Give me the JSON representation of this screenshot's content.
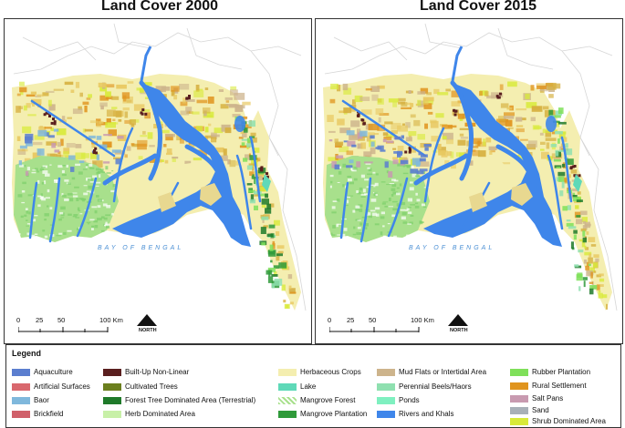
{
  "panels": [
    {
      "title": "Land Cover 2000",
      "bay_label": "BAY OF BENGAL",
      "scale_ticks": [
        "0",
        "25",
        "50",
        "100 Km"
      ],
      "north_label": "NORTH"
    },
    {
      "title": "Land Cover 2015",
      "bay_label": "BAY OF BENGAL",
      "scale_ticks": [
        "0",
        "25",
        "50",
        "100 Km"
      ],
      "north_label": "NORTH"
    }
  ],
  "legend": {
    "title": "Legend",
    "columns": [
      [
        {
          "label": "Aquaculture",
          "color": "#5b7ecf"
        },
        {
          "label": "Artificial Surfaces",
          "color": "#d9686e"
        },
        {
          "label": "Baor",
          "color": "#7fb8dc"
        },
        {
          "label": "Brickfield",
          "color": "#d0606a"
        }
      ],
      [
        {
          "label": "Built-Up Non-Linear",
          "color": "#5a1f1f"
        },
        {
          "label": "Cultivated Trees",
          "color": "#6b7f1e"
        },
        {
          "label": "Forest Tree Dominated Area (Terrestrial)",
          "color": "#1f7a2a"
        },
        {
          "label": "Herb Dominated Area",
          "color": "#c8f0a8"
        }
      ],
      [
        {
          "label": "Herbaceous Crops",
          "color": "#f4eeb0"
        },
        {
          "label": "Lake",
          "color": "#5fd9b8"
        },
        {
          "label": "Mangrove Forest",
          "color": "#a8e08c"
        },
        {
          "label": "Mangrove Plantation",
          "color": "#2f9a3a"
        }
      ],
      [
        {
          "label": "Mud Flats or Intertidal Area",
          "color": "#cdb48c"
        },
        {
          "label": "Perennial Beels/Haors",
          "color": "#8fe0b0"
        },
        {
          "label": "Ponds",
          "color": "#7ff0c0"
        },
        {
          "label": "Rivers and Khals",
          "color": "#3f86ea"
        }
      ],
      [
        {
          "label": "Rubber Plantation",
          "color": "#7fe05a"
        },
        {
          "label": "Rural Settlement",
          "color": "#e0941e"
        },
        {
          "label": "Salt Pans",
          "color": "#c89ab0"
        },
        {
          "label": "Sand",
          "color": "#a8b0b8"
        },
        {
          "label": "Shrub Dominated Area",
          "color": "#d8ea3a"
        }
      ]
    ]
  }
}
